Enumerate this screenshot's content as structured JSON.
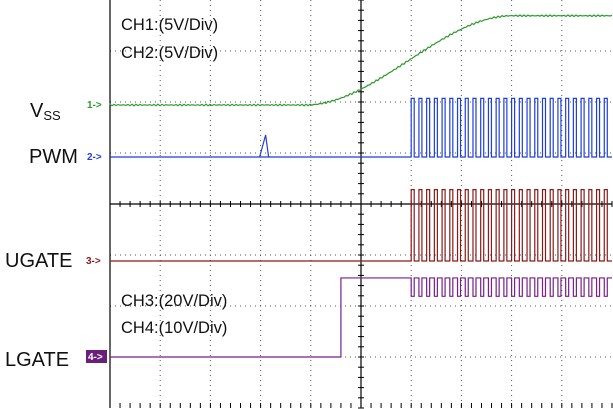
{
  "chart_data": {
    "type": "line",
    "title": "",
    "xlabel": "",
    "ylabel": "",
    "grid": true,
    "scale_notes": [
      {
        "text": "CH1:(5V/Div)",
        "position": "top"
      },
      {
        "text": "CH2:(5V/Div)",
        "position": "top"
      },
      {
        "text": "CH3:(20V/Div)",
        "position": "lower"
      },
      {
        "text": "CH4:(10V/Div)",
        "position": "lower"
      }
    ],
    "series": [
      {
        "name": "V",
        "subscript": "SS",
        "marker": "1->",
        "color": "#2a9a2a",
        "waveform": "ramp",
        "baseline_div": 2.3,
        "high_div": 0.55,
        "ramp_start_div": 3.9,
        "ramp_end_div": 8.0
      },
      {
        "name": "PWM",
        "marker": "2->",
        "color": "#1f3fdc",
        "waveform": "pulse_train",
        "baseline_div": 1.0,
        "pulse_div": 1.15,
        "start_div": 6.0,
        "pulses": 26
      },
      {
        "name": "UGATE",
        "marker": "3->",
        "color": "#8b1a1a",
        "waveform": "pulse_train",
        "baseline_div": 1.05,
        "pulse_div": 1.4,
        "start_div": 6.0,
        "pulses": 26
      },
      {
        "name": "LGATE",
        "marker": "4->",
        "color": "#7a1f8c",
        "waveform": "step_then_pulses",
        "baseline_div": 0.25,
        "high_div": 1.55,
        "step_div": 4.6,
        "start_div": 6.0,
        "pulses": 26
      }
    ]
  }
}
